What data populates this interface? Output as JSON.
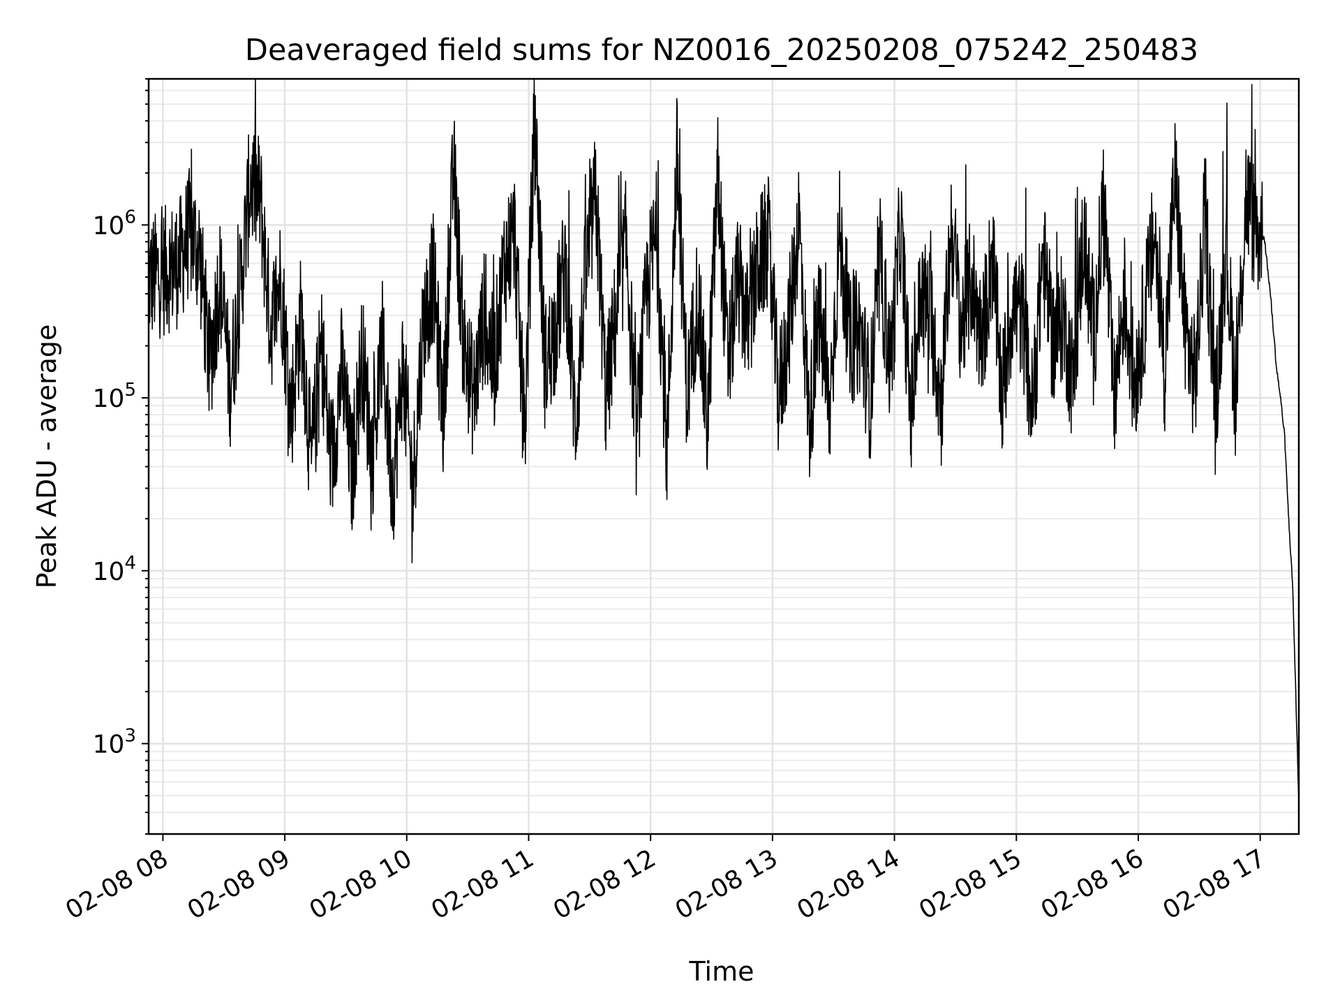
{
  "chart_data": {
    "type": "line",
    "title": "Deaveraged field sums for NZ0016_20250208_075242_250483",
    "xlabel": "Time",
    "ylabel": "Peak ADU - average",
    "yscale": "log",
    "grid": true,
    "legend": "none",
    "x_tick_labels": [
      "02-08 08",
      "02-08 09",
      "02-08 10",
      "02-08 11",
      "02-08 12",
      "02-08 13",
      "02-08 14",
      "02-08 15",
      "02-08 16",
      "02-08 17"
    ],
    "y_tick_labels": [
      {
        "base": "10",
        "exp": "3",
        "value": 1000
      },
      {
        "base": "10",
        "exp": "4",
        "value": 10000
      },
      {
        "base": "10",
        "exp": "5",
        "value": 100000
      },
      {
        "base": "10",
        "exp": "6",
        "value": 1000000
      }
    ],
    "xlim": [
      "2025-02-08 07:53",
      "2025-02-08 17:19"
    ],
    "ylim": [
      300,
      7000000
    ],
    "series": [
      {
        "color": "#000000",
        "x": [
          "07:53",
          "07:58",
          "08:03",
          "08:08",
          "08:13",
          "08:18",
          "08:23",
          "08:28",
          "08:33",
          "08:38",
          "08:43",
          "08:48",
          "08:53",
          "08:58",
          "09:03",
          "09:08",
          "09:13",
          "09:18",
          "09:23",
          "09:28",
          "09:33",
          "09:38",
          "09:43",
          "09:48",
          "09:53",
          "09:58",
          "10:03",
          "10:08",
          "10:13",
          "10:18",
          "10:23",
          "10:28",
          "10:33",
          "10:38",
          "10:43",
          "10:48",
          "10:53",
          "10:58",
          "11:03",
          "11:08",
          "11:13",
          "11:18",
          "11:23",
          "11:28",
          "11:33",
          "11:38",
          "11:43",
          "11:48",
          "11:53",
          "11:58",
          "12:03",
          "12:08",
          "12:13",
          "12:18",
          "12:23",
          "12:28",
          "12:33",
          "12:38",
          "12:43",
          "12:48",
          "12:53",
          "12:58",
          "13:03",
          "13:08",
          "13:13",
          "13:18",
          "13:23",
          "13:28",
          "13:33",
          "13:38",
          "13:43",
          "13:48",
          "13:53",
          "13:58",
          "14:03",
          "14:08",
          "14:13",
          "14:18",
          "14:23",
          "14:28",
          "14:33",
          "14:38",
          "14:43",
          "14:48",
          "14:53",
          "14:58",
          "15:03",
          "15:08",
          "15:13",
          "15:18",
          "15:23",
          "15:28",
          "15:33",
          "15:38",
          "15:43",
          "15:48",
          "15:53",
          "15:58",
          "16:03",
          "16:08",
          "16:13",
          "16:18",
          "16:23",
          "16:28",
          "16:33",
          "16:38",
          "16:43",
          "16:48",
          "16:53",
          "16:58",
          "17:02",
          "17:05",
          "17:08",
          "17:10",
          "17:12",
          "17:14",
          "17:16",
          "17:18",
          "17:19"
        ],
        "y": [
          480000,
          520000,
          560000,
          600000,
          900000,
          700000,
          150000,
          500000,
          120000,
          400000,
          1800000,
          1400000,
          250000,
          500000,
          80000,
          300000,
          40000,
          200000,
          40000,
          150000,
          35000,
          180000,
          45000,
          200000,
          30000,
          150000,
          30000,
          260000,
          500000,
          80000,
          2200000,
          200000,
          100000,
          300000,
          150000,
          600000,
          900000,
          60000,
          4500000,
          150000,
          250000,
          600000,
          70000,
          500000,
          1500000,
          100000,
          300000,
          800000,
          60000,
          400000,
          900000,
          50000,
          2500000,
          100000,
          400000,
          70000,
          2000000,
          150000,
          500000,
          250000,
          600000,
          800000,
          100000,
          250000,
          1100000,
          70000,
          300000,
          80000,
          900000,
          200000,
          250000,
          100000,
          600000,
          150000,
          1000000,
          80000,
          400000,
          300000,
          90000,
          1000000,
          250000,
          500000,
          200000,
          700000,
          100000,
          350000,
          300000,
          80000,
          700000,
          200000,
          300000,
          120000,
          900000,
          200000,
          1500000,
          90000,
          400000,
          120000,
          300000,
          900000,
          150000,
          2000000,
          250000,
          120000,
          1200000,
          80000,
          800000,
          100000,
          1500000,
          900000,
          850000,
          400000,
          150000,
          100000,
          60000,
          20000,
          8000,
          1200,
          450
        ]
      }
    ]
  }
}
